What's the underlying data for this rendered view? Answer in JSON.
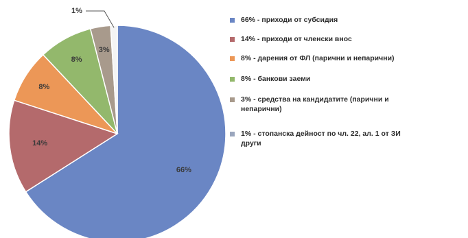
{
  "chart_data": {
    "type": "pie",
    "slices": [
      {
        "label": "66%",
        "value": 66,
        "legend": "66% - приходи от субсидия",
        "color": "#6a86c4"
      },
      {
        "label": "14%",
        "value": 14,
        "legend": "14% - приходи от членски внос",
        "color": "#b46a6c"
      },
      {
        "label": "8%",
        "value": 8,
        "legend": "8% - дарения от ФЛ (парични и непарични)",
        "color": "#ec9757"
      },
      {
        "label": "8%",
        "value": 8,
        "legend": "8% - банкови заеми",
        "color": "#93b86c"
      },
      {
        "label": "3%",
        "value": 3,
        "legend": "3% - средства на кандидатите (парични и\nнепарични)",
        "color": "#a89a8c"
      },
      {
        "label": "1%",
        "value": 1,
        "legend": "1% - стопанска дейност по чл. 22, ал. 1 от ЗИ\nдруги",
        "color": "#f4f4f4"
      }
    ],
    "legend_position": "right"
  }
}
